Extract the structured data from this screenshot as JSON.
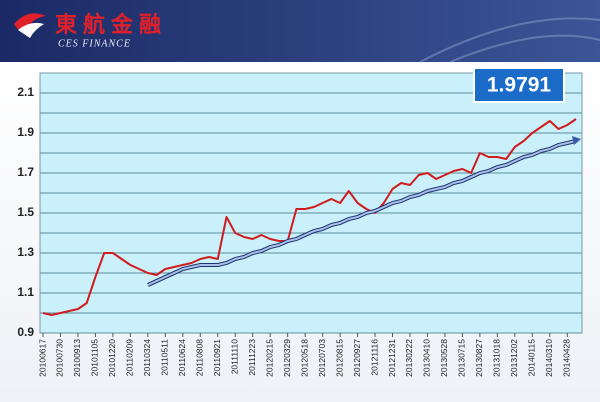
{
  "header": {
    "title": "東航金融",
    "subtitle": "CES FINANCE"
  },
  "chart_data": {
    "type": "line",
    "annotation": "1.9791",
    "categories": [
      "20100617",
      null,
      "20100730",
      null,
      "20100913",
      null,
      "20101105",
      null,
      "20101220",
      null,
      "20110209",
      null,
      "20110324",
      null,
      "20110511",
      null,
      "20110624",
      null,
      "20110808",
      null,
      "20110921",
      null,
      "20111110",
      null,
      "20111223",
      null,
      "20120215",
      null,
      "20120329",
      null,
      "20120518",
      null,
      "20120703",
      null,
      "20120815",
      null,
      "20120927",
      null,
      "20121116",
      null,
      "20121231",
      null,
      "20130222",
      null,
      "20130410",
      null,
      "20130528",
      null,
      "20130715",
      null,
      "20130827",
      null,
      "20131018",
      null,
      "20131202",
      null,
      "20140115",
      null,
      "20140310",
      null,
      "20140428",
      null
    ],
    "series": [
      {
        "color": "#d01c1c",
        "values": [
          1.0,
          0.99,
          1.0,
          1.01,
          1.02,
          1.05,
          1.18,
          1.3,
          1.3,
          1.27,
          1.24,
          1.22,
          1.2,
          1.19,
          1.22,
          1.23,
          1.24,
          1.25,
          1.27,
          1.28,
          1.27,
          1.48,
          1.4,
          1.38,
          1.37,
          1.39,
          1.37,
          1.36,
          1.36,
          1.52,
          1.52,
          1.53,
          1.55,
          1.57,
          1.55,
          1.61,
          1.55,
          1.52,
          1.5,
          1.55,
          1.62,
          1.65,
          1.64,
          1.69,
          1.7,
          1.67,
          1.69,
          1.71,
          1.72,
          1.7,
          1.8,
          1.78,
          1.78,
          1.77,
          1.83,
          1.86,
          1.9,
          1.93,
          1.96,
          1.92,
          1.94,
          1.97
        ]
      },
      {
        "color": "#3a5aa8",
        "values": [
          null,
          null,
          null,
          null,
          null,
          null,
          null,
          null,
          null,
          null,
          null,
          null,
          1.14,
          1.16,
          1.18,
          1.2,
          1.22,
          1.23,
          1.24,
          1.24,
          1.24,
          1.25,
          1.27,
          1.28,
          1.3,
          1.31,
          1.33,
          1.34,
          1.36,
          1.37,
          1.39,
          1.41,
          1.42,
          1.44,
          1.45,
          1.47,
          1.48,
          1.5,
          1.51,
          1.53,
          1.55,
          1.56,
          1.58,
          1.59,
          1.61,
          1.62,
          1.63,
          1.65,
          1.66,
          1.68,
          1.7,
          1.71,
          1.73,
          1.74,
          1.76,
          1.78,
          1.79,
          1.81,
          1.82,
          1.84,
          1.85,
          1.86
        ]
      }
    ],
    "ylim": [
      0.9,
      2.2
    ],
    "yticks": [
      0.9,
      1.1,
      1.3,
      1.5,
      1.7,
      1.9,
      2.1
    ],
    "grid": true
  }
}
